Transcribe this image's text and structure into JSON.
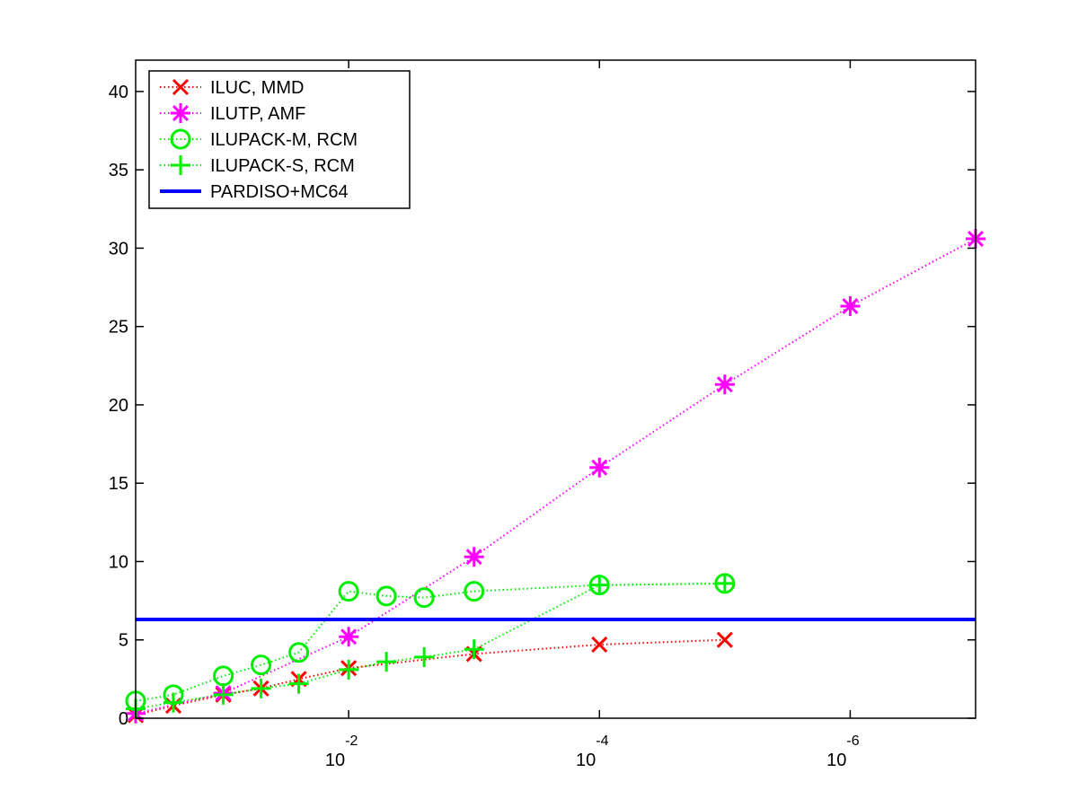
{
  "chart_data": {
    "type": "line",
    "title": "",
    "xlabel": "",
    "ylabel": "",
    "x_scale": "log",
    "x_reversed": true,
    "x_range": [
      0.5,
      1e-07
    ],
    "ylim": [
      0,
      42
    ],
    "y_ticks": [
      0,
      5,
      10,
      15,
      20,
      25,
      30,
      35,
      40
    ],
    "x_ticks": [
      {
        "value": 0.01,
        "base": "10",
        "exponent": "-2"
      },
      {
        "value": 0.0001,
        "base": "10",
        "exponent": "-4"
      },
      {
        "value": 1e-06,
        "base": "10",
        "exponent": "-6"
      }
    ],
    "grid": false,
    "legend_position": "top-left",
    "series": [
      {
        "name": "ILUC, MMD",
        "color": "#ff0000",
        "marker": "x",
        "line": "dotted",
        "points": [
          [
            0.5,
            0.2
          ],
          [
            0.25,
            0.8
          ],
          [
            0.1,
            1.5
          ],
          [
            0.05,
            1.9
          ],
          [
            0.025,
            2.5
          ],
          [
            0.01,
            3.2
          ],
          [
            0.001,
            4.1
          ],
          [
            0.0001,
            4.7
          ],
          [
            1e-05,
            5.0
          ]
        ]
      },
      {
        "name": "ILUTP, AMF",
        "color": "#ff00ff",
        "marker": "asterisk",
        "line": "dotted",
        "points": [
          [
            0.5,
            0.3
          ],
          [
            0.1,
            1.6
          ],
          [
            0.01,
            5.2
          ],
          [
            0.001,
            10.3
          ],
          [
            0.0001,
            16.0
          ],
          [
            1e-05,
            21.3
          ],
          [
            1e-06,
            26.3
          ],
          [
            1e-07,
            30.6
          ]
        ]
      },
      {
        "name": "ILUPACK-M, RCM",
        "color": "#00ee00",
        "marker": "circle",
        "line": "dotted",
        "points": [
          [
            0.5,
            1.1
          ],
          [
            0.25,
            1.5
          ],
          [
            0.1,
            2.7
          ],
          [
            0.05,
            3.4
          ],
          [
            0.025,
            4.2
          ],
          [
            0.01,
            8.1
          ],
          [
            0.005,
            7.8
          ],
          [
            0.0025,
            7.7
          ],
          [
            0.001,
            8.1
          ],
          [
            0.0001,
            8.5
          ],
          [
            1e-05,
            8.6
          ]
        ]
      },
      {
        "name": "ILUPACK-S, RCM",
        "color": "#00ee00",
        "marker": "plus",
        "line": "dotted",
        "points": [
          [
            0.5,
            0.6
          ],
          [
            0.25,
            1.0
          ],
          [
            0.1,
            1.5
          ],
          [
            0.05,
            1.9
          ],
          [
            0.025,
            2.2
          ],
          [
            0.01,
            3.1
          ],
          [
            0.005,
            3.6
          ],
          [
            0.0025,
            3.9
          ],
          [
            0.001,
            4.4
          ],
          [
            0.0001,
            8.5
          ],
          [
            1e-05,
            8.6
          ]
        ]
      },
      {
        "name": "PARDISO+MC64",
        "color": "#0000ff",
        "marker": "none",
        "line": "solid",
        "points": [
          [
            0.5,
            6.3
          ],
          [
            1e-07,
            6.3
          ]
        ]
      }
    ]
  }
}
